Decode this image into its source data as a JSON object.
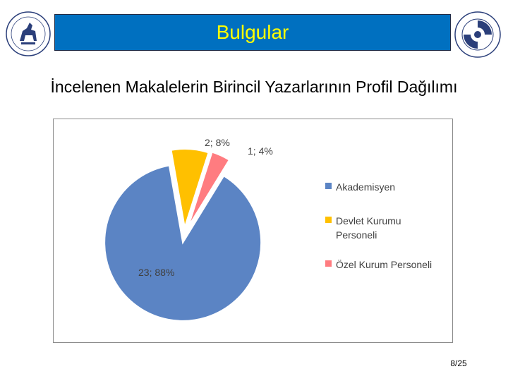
{
  "banner": {
    "title": "Bulgular"
  },
  "subtitle": "İncelenen Makalelerin Birincil Yazarlarının Profil Dağılımı",
  "chart_data": {
    "type": "pie",
    "categories": [
      "Akademisyen",
      "Devlet Kurumu Personeli",
      "Özel Kurum Personeli"
    ],
    "values": [
      23,
      2,
      1
    ],
    "percentages": [
      88,
      8,
      4
    ],
    "data_labels": [
      "23; 88%",
      "2; 8%",
      "1; 4%"
    ],
    "colors": [
      "#5b84c4",
      "#ffc000",
      "#ff7c80"
    ],
    "legend_position": "right",
    "exploded": true
  },
  "legend": [
    {
      "label": "Akademisyen",
      "color": "#5b84c4"
    },
    {
      "label": "Devlet Kurumu Personeli",
      "color": "#ffc000"
    },
    {
      "label": "Özel Kurum Personeli",
      "color": "#ff7c80"
    }
  ],
  "page": {
    "number": "8/25"
  }
}
